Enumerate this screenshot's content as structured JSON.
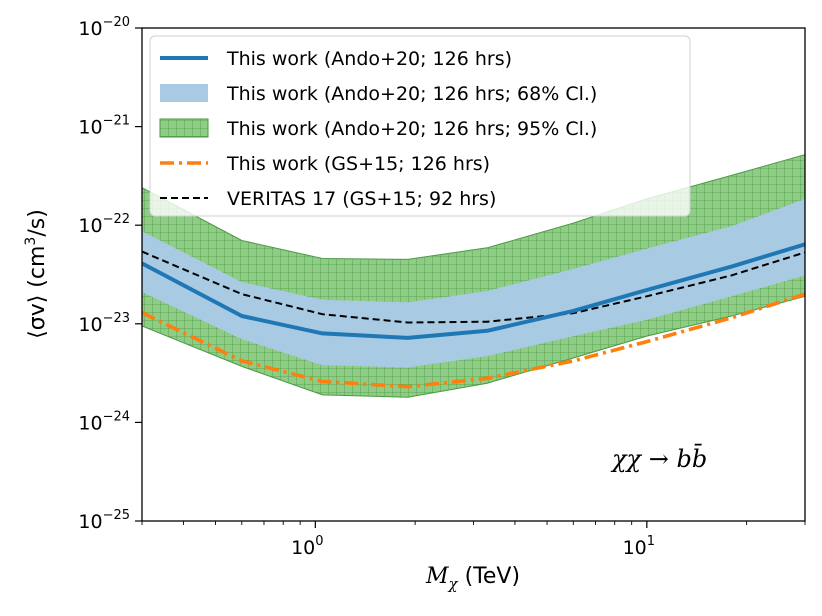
{
  "chart_data": {
    "type": "line",
    "x_scale": "log",
    "y_scale": "log",
    "xlim": [
      0.3,
      30
    ],
    "ylim": [
      1e-25,
      1e-20
    ],
    "xlabel": {
      "base": "M",
      "sub": "χ",
      "unit": " (TeV)"
    },
    "ylabel": {
      "pre": "⟨σv⟩ (cm",
      "sup": "3",
      "post": "/s)"
    },
    "xticks": [
      {
        "value": 1,
        "base": "10",
        "exp": "0"
      },
      {
        "value": 10,
        "base": "10",
        "exp": "1"
      }
    ],
    "yticks": [
      {
        "value": 1e-25,
        "base": "10",
        "exp": "−25"
      },
      {
        "value": 1e-24,
        "base": "10",
        "exp": "−24"
      },
      {
        "value": 1e-23,
        "base": "10",
        "exp": "−23"
      },
      {
        "value": 1e-22,
        "base": "10",
        "exp": "−22"
      },
      {
        "value": 1e-21,
        "base": "10",
        "exp": "−21"
      },
      {
        "value": 1e-20,
        "base": "10",
        "exp": "−20"
      }
    ],
    "grid": false,
    "legend_position": "top-left",
    "annotation": "χχ → bb̄",
    "series": [
      {
        "name": "This work (Ando+20; 126 hrs; 95% Cl.)",
        "kind": "band",
        "color": "#2ca02c",
        "x": [
          0.3,
          0.6,
          1.05,
          1.9,
          3.3,
          6.0,
          10.0,
          18.0,
          30.0
        ],
        "lower": [
          9.5e-24,
          3.7e-24,
          1.9e-24,
          1.8e-24,
          2.5e-24,
          4.5e-24,
          7.5e-24,
          1.2e-23,
          1.9e-23
        ],
        "upper": [
          2.4e-22,
          7e-23,
          4.6e-23,
          4.5e-23,
          5.9e-23,
          1.05e-22,
          1.85e-22,
          3.2e-22,
          5.2e-22
        ]
      },
      {
        "name": "This work (Ando+20; 126 hrs; 68% Cl.)",
        "kind": "band",
        "color": "#a8cbe3",
        "x": [
          0.3,
          0.6,
          1.05,
          1.9,
          3.3,
          6.0,
          10.0,
          18.0,
          30.0
        ],
        "lower": [
          2.1e-23,
          7e-24,
          3.8e-24,
          3.6e-24,
          4.7e-24,
          7.5e-24,
          1.1e-23,
          1.9e-23,
          3.1e-23
        ],
        "upper": [
          8.7e-23,
          2.65e-23,
          1.75e-23,
          1.65e-23,
          2.15e-23,
          3.6e-23,
          5.8e-23,
          9.8e-23,
          1.85e-22
        ]
      },
      {
        "name": "VERITAS 17 (GS+15; 92 hrs)",
        "kind": "line",
        "style": "dashed",
        "color": "#000000",
        "x": [
          0.3,
          0.6,
          1.05,
          1.9,
          3.3,
          6.0,
          10.0,
          18.0,
          30.0
        ],
        "y": [
          5.4e-23,
          2e-23,
          1.25e-23,
          1.03e-23,
          1.05e-23,
          1.28e-23,
          1.9e-23,
          3.1e-23,
          5.3e-23
        ]
      },
      {
        "name": "This work (Ando+20; 126 hrs)",
        "kind": "line",
        "style": "solid",
        "color": "#1f77b4",
        "x": [
          0.3,
          0.6,
          1.05,
          1.9,
          3.3,
          6.0,
          10.0,
          18.0,
          30.0
        ],
        "y": [
          4.1e-23,
          1.2e-23,
          8e-24,
          7.2e-24,
          8.5e-24,
          1.35e-23,
          2.2e-23,
          3.8e-23,
          6.4e-23
        ]
      },
      {
        "name": "This work (GS+15; 126 hrs)",
        "kind": "line",
        "style": "dashdot",
        "color": "#ff7f0e",
        "x": [
          0.3,
          0.6,
          1.05,
          1.9,
          3.3,
          6.0,
          10.0,
          18.0,
          30.0
        ],
        "y": [
          1.3e-23,
          4.2e-24,
          2.6e-24,
          2.3e-24,
          2.8e-24,
          4.2e-24,
          6.6e-24,
          1.15e-23,
          2e-23
        ]
      }
    ],
    "legend_order": [
      "This work (Ando+20; 126 hrs)",
      "This work (Ando+20; 126 hrs; 68% Cl.)",
      "This work (Ando+20; 126 hrs; 95% Cl.)",
      "This work (GS+15; 126 hrs)",
      "VERITAS 17 (GS+15; 92 hrs)"
    ]
  }
}
